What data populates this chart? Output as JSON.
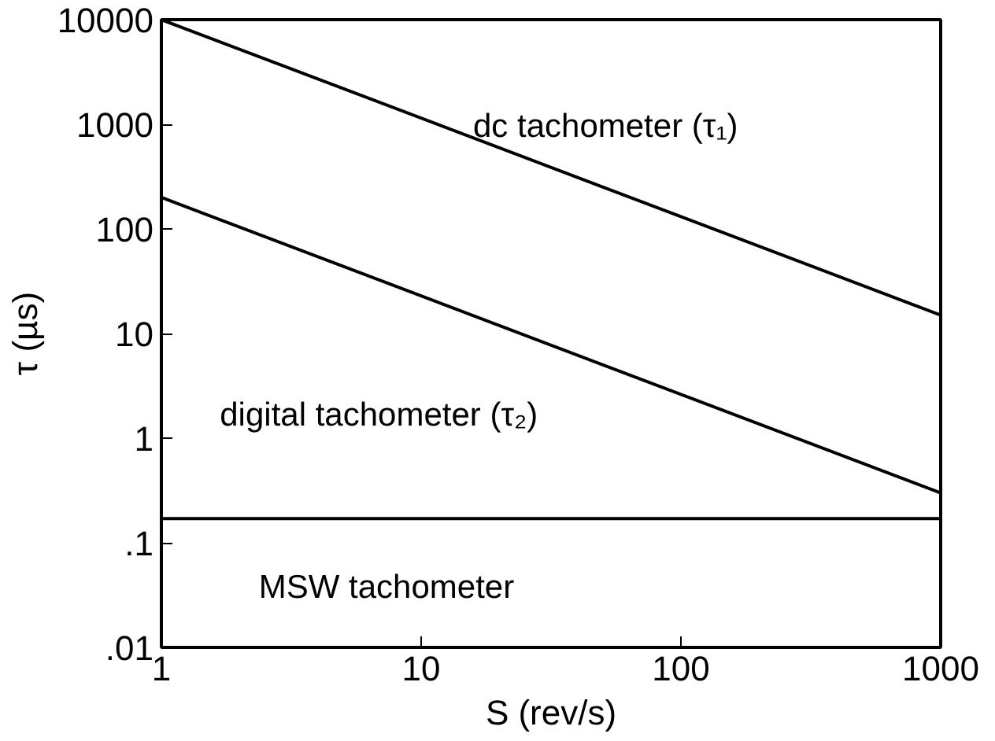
{
  "chart_data": {
    "type": "line",
    "xlabel": "S (rev/s)",
    "ylabel": "τ (µs)",
    "log": "xy",
    "xlim": [
      1,
      1000
    ],
    "xticks": [
      1,
      10,
      100,
      1000
    ],
    "ylim": [
      0.01,
      10000
    ],
    "yticks": [
      {
        "value": 0.01,
        "label": ".01"
      },
      {
        "value": 0.1,
        "label": ".1"
      },
      1,
      10,
      100,
      1000,
      10000
    ],
    "x": [
      1,
      1000
    ],
    "grid": false,
    "series": [
      {
        "name": "dc tachometer (τ₁)",
        "color": "#000000",
        "values": [
          10000,
          15
        ]
      },
      {
        "name": "digital tachometer (τ₂)",
        "color": "#000000",
        "values": [
          200,
          0.3
        ]
      },
      {
        "name": "MSW  tachometer",
        "color": "#000000",
        "values": [
          0.17,
          0.17
        ]
      }
    ]
  }
}
